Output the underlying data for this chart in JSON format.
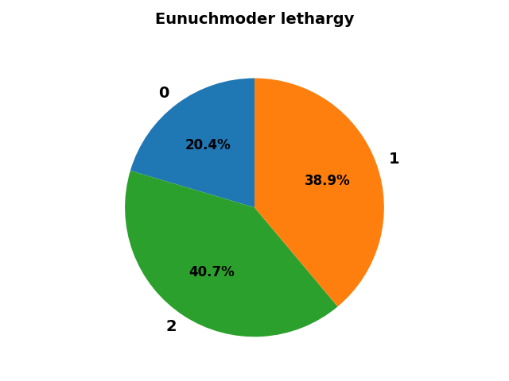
{
  "title": "Eunuchmoder lethargy",
  "labels": [
    "0",
    "2",
    "1"
  ],
  "values": [
    20.4,
    40.7,
    38.9
  ],
  "colors": [
    "#1f77b4",
    "#2ca02c",
    "#ff7f0e"
  ],
  "startangle": 90,
  "counterclock": true,
  "title_fontsize": 14,
  "title_fontweight": "bold",
  "label_fontsize": 14,
  "label_fontweight": "bold",
  "pct_fontsize": 12,
  "pct_fontweight": "bold",
  "background_color": "#ffffff"
}
